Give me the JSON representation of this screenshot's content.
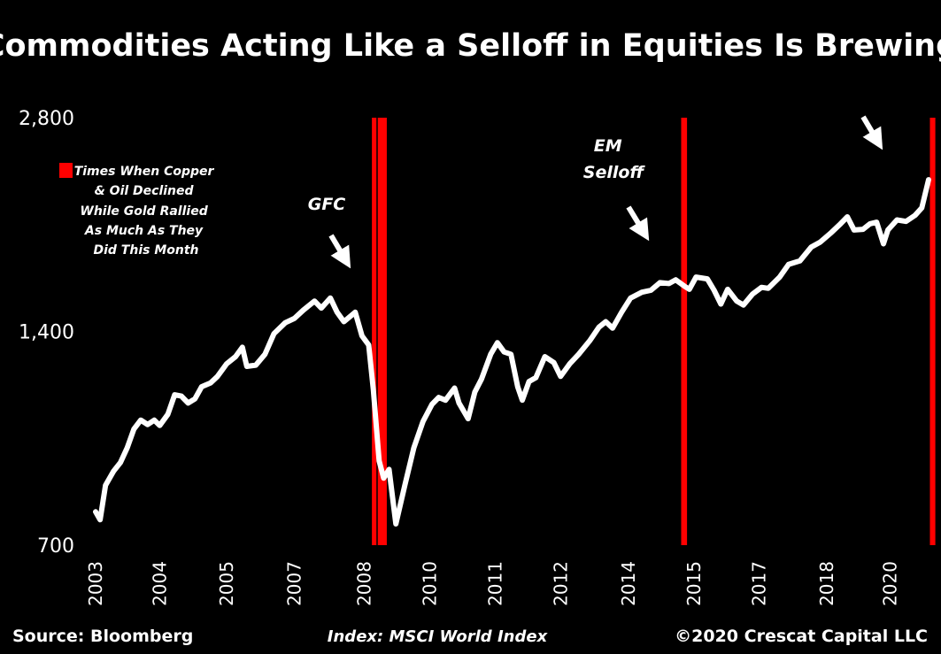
{
  "chart_data": {
    "type": "line",
    "title": "Commodities Acting Like a Selloff in Equities Is Brewing",
    "xlabel": "",
    "ylabel": "",
    "yscale": "log",
    "ylim": [
      700,
      2800
    ],
    "yticks": [
      {
        "value": 2800,
        "label": "2,800"
      },
      {
        "value": 1400,
        "label": "1,400"
      },
      {
        "value": 700,
        "label": "700"
      }
    ],
    "xlim": [
      2003.0,
      2020.7
    ],
    "xticks": [
      {
        "value": 2003.0,
        "label": "2003"
      },
      {
        "value": 2004.42,
        "label": "2004"
      },
      {
        "value": 2005.9,
        "label": "2005"
      },
      {
        "value": 2007.4,
        "label": "2007"
      },
      {
        "value": 2008.95,
        "label": "2008"
      },
      {
        "value": 2010.4,
        "label": "2010"
      },
      {
        "value": 2011.85,
        "label": "2011"
      },
      {
        "value": 2013.3,
        "label": "2012"
      },
      {
        "value": 2014.8,
        "label": "2014"
      },
      {
        "value": 2016.25,
        "label": "2015"
      },
      {
        "value": 2017.7,
        "label": "2017"
      },
      {
        "value": 2019.2,
        "label": "2018"
      },
      {
        "value": 2020.6,
        "label": "2020"
      }
    ],
    "series": [
      {
        "name": "MSCI World Index",
        "color": "#ffffff",
        "points": [
          [
            2003.0,
            780
          ],
          [
            2003.1,
            760
          ],
          [
            2003.22,
            850
          ],
          [
            2003.4,
            890
          ],
          [
            2003.55,
            915
          ],
          [
            2003.7,
            960
          ],
          [
            2003.85,
            1020
          ],
          [
            2004.0,
            1050
          ],
          [
            2004.15,
            1035
          ],
          [
            2004.3,
            1050
          ],
          [
            2004.42,
            1032
          ],
          [
            2004.6,
            1070
          ],
          [
            2004.75,
            1140
          ],
          [
            2004.9,
            1135
          ],
          [
            2005.05,
            1110
          ],
          [
            2005.2,
            1125
          ],
          [
            2005.35,
            1170
          ],
          [
            2005.55,
            1185
          ],
          [
            2005.7,
            1210
          ],
          [
            2005.9,
            1260
          ],
          [
            2006.1,
            1290
          ],
          [
            2006.25,
            1330
          ],
          [
            2006.35,
            1250
          ],
          [
            2006.55,
            1255
          ],
          [
            2006.75,
            1300
          ],
          [
            2006.95,
            1390
          ],
          [
            2007.2,
            1440
          ],
          [
            2007.4,
            1460
          ],
          [
            2007.6,
            1500
          ],
          [
            2007.85,
            1545
          ],
          [
            2008.0,
            1510
          ],
          [
            2008.2,
            1560
          ],
          [
            2008.35,
            1490
          ],
          [
            2008.5,
            1445
          ],
          [
            2008.75,
            1490
          ],
          [
            2008.9,
            1380
          ],
          [
            2009.05,
            1340
          ],
          [
            2009.15,
            1160
          ],
          [
            2009.28,
            920
          ],
          [
            2009.38,
            870
          ],
          [
            2009.5,
            895
          ],
          [
            2009.65,
            750
          ],
          [
            2009.85,
            850
          ],
          [
            2010.05,
            960
          ],
          [
            2010.25,
            1045
          ],
          [
            2010.45,
            1105
          ],
          [
            2010.6,
            1130
          ],
          [
            2010.75,
            1120
          ],
          [
            2010.95,
            1165
          ],
          [
            2011.05,
            1110
          ],
          [
            2011.25,
            1055
          ],
          [
            2011.4,
            1150
          ],
          [
            2011.55,
            1200
          ],
          [
            2011.75,
            1300
          ],
          [
            2011.9,
            1350
          ],
          [
            2012.05,
            1310
          ],
          [
            2012.2,
            1300
          ],
          [
            2012.35,
            1170
          ],
          [
            2012.45,
            1120
          ],
          [
            2012.6,
            1190
          ],
          [
            2012.75,
            1205
          ],
          [
            2012.95,
            1290
          ],
          [
            2013.15,
            1265
          ],
          [
            2013.3,
            1210
          ],
          [
            2013.5,
            1260
          ],
          [
            2013.7,
            1300
          ],
          [
            2013.95,
            1360
          ],
          [
            2014.15,
            1420
          ],
          [
            2014.3,
            1445
          ],
          [
            2014.45,
            1415
          ],
          [
            2014.65,
            1490
          ],
          [
            2014.85,
            1560
          ],
          [
            2015.1,
            1590
          ],
          [
            2015.3,
            1600
          ],
          [
            2015.5,
            1640
          ],
          [
            2015.7,
            1635
          ],
          [
            2015.85,
            1655
          ],
          [
            2016.05,
            1620
          ],
          [
            2016.15,
            1605
          ],
          [
            2016.3,
            1670
          ],
          [
            2016.55,
            1660
          ],
          [
            2016.7,
            1600
          ],
          [
            2016.85,
            1530
          ],
          [
            2017.0,
            1605
          ],
          [
            2017.2,
            1545
          ],
          [
            2017.35,
            1525
          ],
          [
            2017.55,
            1580
          ],
          [
            2017.75,
            1615
          ],
          [
            2017.9,
            1610
          ],
          [
            2018.15,
            1670
          ],
          [
            2018.35,
            1740
          ],
          [
            2018.6,
            1760
          ],
          [
            2018.85,
            1840
          ],
          [
            2019.05,
            1870
          ],
          [
            2019.3,
            1930
          ],
          [
            2019.5,
            1985
          ],
          [
            2019.65,
            2030
          ],
          [
            2019.8,
            1945
          ],
          [
            2020.0,
            1950
          ],
          [
            2020.15,
            1985
          ],
          [
            2020.3,
            1995
          ],
          [
            2020.45,
            1860
          ],
          [
            2020.55,
            1945
          ],
          [
            2020.75,
            2010
          ],
          [
            2020.95,
            2000
          ],
          [
            2021.15,
            2040
          ],
          [
            2021.3,
            2090
          ],
          [
            2021.45,
            2290
          ]
        ]
      }
    ],
    "highlight_periods": [
      {
        "start": 2009.12,
        "end": 2009.22,
        "color": "#ff0000"
      },
      {
        "start": 2009.25,
        "end": 2009.45,
        "color": "#ff0000"
      },
      {
        "start": 2015.97,
        "end": 2016.1,
        "color": "#ff0000"
      },
      {
        "start": 2021.48,
        "end": 2021.6,
        "color": "#ff0000"
      }
    ],
    "legend": {
      "placement": "top-left",
      "lines": [
        "Times When Copper",
        "& Oil Declined",
        "While Gold Rallied",
        "As Much As They",
        "Did This Month"
      ],
      "color": "#ff0000"
    },
    "annotations": [
      {
        "lines": [
          "GFC"
        ],
        "arrow": true
      },
      {
        "lines": [
          "EM",
          "Selloff"
        ],
        "arrow": true
      },
      {
        "lines": [],
        "arrow": true
      }
    ]
  },
  "footer": {
    "source": "Source: Bloomberg",
    "index": "Index: MSCI World Index",
    "copyright": "©2020 Crescat Capital LLC"
  }
}
